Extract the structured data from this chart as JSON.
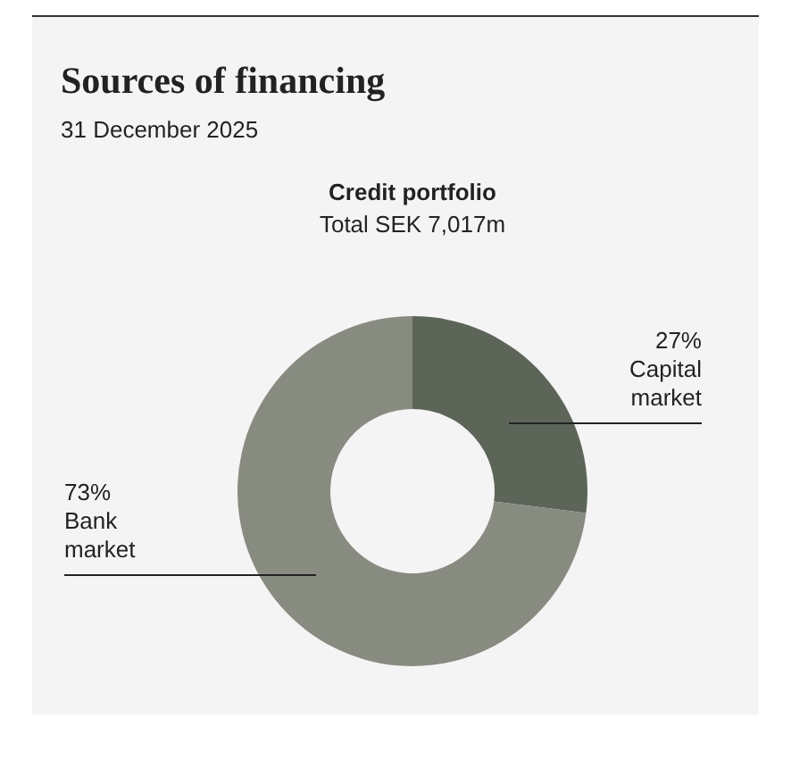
{
  "chart_data": {
    "type": "donut",
    "title": "Sources of financing",
    "subtitle": "31 December 2025",
    "annotations": [
      "Credit portfolio",
      "Total SEK 7,017m"
    ],
    "categories": [
      "Capital market",
      "Bank market"
    ],
    "values": [
      27,
      73
    ],
    "colors": [
      "#5d6559",
      "#888b80"
    ],
    "value_labels": [
      "27%",
      "73%"
    ],
    "legend": false
  }
}
